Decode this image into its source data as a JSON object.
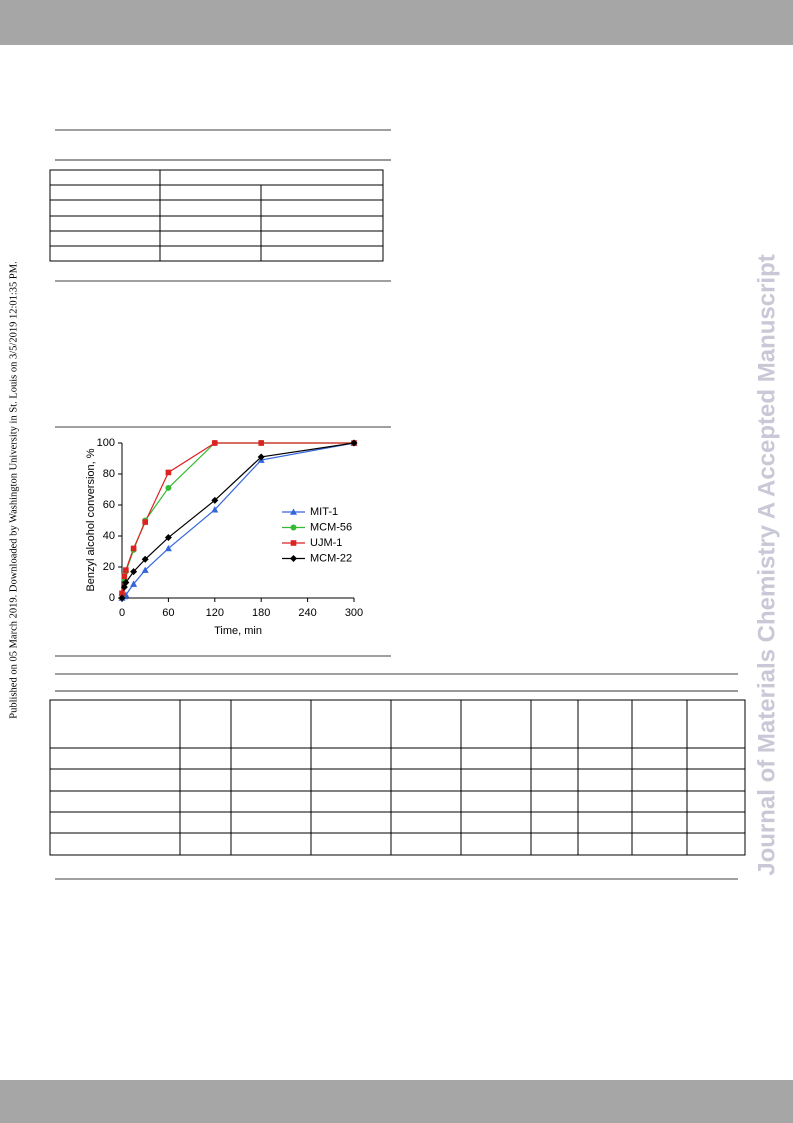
{
  "side_note": "Published on 05 March 2019. Downloaded by Washington University in St. Louis on 3/5/2019 12:01:35 PM.",
  "watermark": "Journal of Materials Chemistry A Accepted Manuscript",
  "chart_data": {
    "type": "scatter",
    "xlabel": "Time, min",
    "ylabel": "Benzyl alcohol conversion, %",
    "x": [
      0,
      3,
      5,
      15,
      30,
      60,
      120,
      180,
      300
    ],
    "series": [
      {
        "name": "MIT-1",
        "color": "#3366dd",
        "marker": "triangle",
        "values": [
          0,
          1,
          2,
          9,
          18,
          32,
          57,
          89,
          100
        ]
      },
      {
        "name": "MCM-56",
        "color": "#33bb33",
        "marker": "circle",
        "values": [
          2,
          12,
          17,
          31,
          50,
          71,
          100,
          100,
          100
        ]
      },
      {
        "name": "UJM-1",
        "color": "#dd2222",
        "marker": "square",
        "values": [
          3,
          14,
          18,
          32,
          49,
          81,
          100,
          100,
          100
        ]
      },
      {
        "name": "MCM-22",
        "color": "#000000",
        "marker": "diamond",
        "values": [
          0,
          7,
          10,
          17,
          25,
          39,
          63,
          91,
          100
        ]
      }
    ],
    "xlim": [
      0,
      300
    ],
    "xticks": [
      0,
      60,
      120,
      180,
      240,
      300
    ],
    "ylim": [
      0,
      100
    ],
    "yticks": [
      0,
      20,
      40,
      60,
      80,
      100
    ]
  }
}
